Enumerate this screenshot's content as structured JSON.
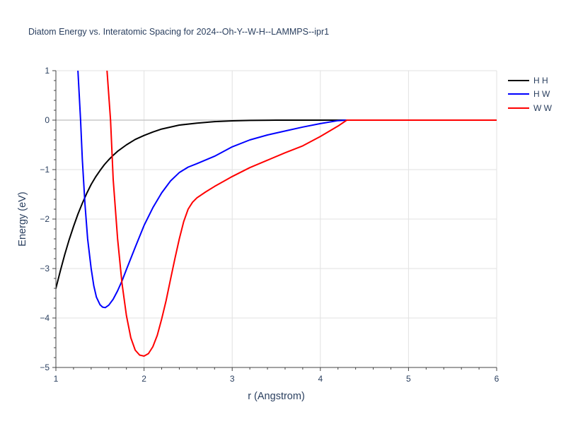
{
  "chart_data": {
    "type": "line",
    "title": "Diatom Energy vs. Interatomic Spacing for 2024--Oh-Y--W-H--LAMMPS--ipr1",
    "xlabel": "r (Angstrom)",
    "ylabel": "Energy (eV)",
    "xlim": [
      1,
      6
    ],
    "ylim": [
      -5,
      1
    ],
    "x_ticks": [
      1,
      2,
      3,
      4,
      5,
      6
    ],
    "y_ticks": [
      1,
      0,
      -1,
      -2,
      -3,
      -4,
      -5
    ],
    "x_tick_labels": [
      "1",
      "2",
      "3",
      "4",
      "5",
      "6"
    ],
    "y_tick_labels": [
      "1",
      "0",
      "−1",
      "−2",
      "−3",
      "−4",
      "−5"
    ],
    "grid": true,
    "legend_position": "top-right",
    "series": [
      {
        "name": "H H",
        "color": "#000000",
        "x": [
          1.0,
          1.05,
          1.1,
          1.15,
          1.2,
          1.25,
          1.3,
          1.35,
          1.4,
          1.45,
          1.5,
          1.55,
          1.6,
          1.65,
          1.7,
          1.8,
          1.9,
          2.0,
          2.1,
          2.2,
          2.4,
          2.6,
          2.8,
          3.0,
          3.2,
          3.5,
          4.0,
          4.3,
          5.0,
          6.0
        ],
        "y": [
          -3.4,
          -3.05,
          -2.72,
          -2.42,
          -2.15,
          -1.9,
          -1.68,
          -1.48,
          -1.3,
          -1.15,
          -1.02,
          -0.9,
          -0.8,
          -0.71,
          -0.63,
          -0.5,
          -0.39,
          -0.31,
          -0.24,
          -0.18,
          -0.1,
          -0.06,
          -0.03,
          -0.015,
          -0.005,
          0.0,
          0.0,
          0.0,
          0.0,
          0.0
        ]
      },
      {
        "name": "H W",
        "color": "#0000ff",
        "x": [
          1.25,
          1.28,
          1.3,
          1.33,
          1.36,
          1.4,
          1.43,
          1.46,
          1.5,
          1.53,
          1.56,
          1.6,
          1.65,
          1.7,
          1.75,
          1.8,
          1.9,
          2.0,
          2.1,
          2.2,
          2.3,
          2.4,
          2.5,
          2.6,
          2.8,
          3.0,
          3.2,
          3.4,
          3.6,
          3.8,
          4.0,
          4.2,
          4.3,
          5.0,
          6.0
        ],
        "y": [
          1.0,
          0.0,
          -0.8,
          -1.7,
          -2.4,
          -3.0,
          -3.35,
          -3.58,
          -3.73,
          -3.78,
          -3.79,
          -3.74,
          -3.62,
          -3.45,
          -3.25,
          -3.02,
          -2.57,
          -2.13,
          -1.77,
          -1.47,
          -1.23,
          -1.06,
          -0.95,
          -0.88,
          -0.73,
          -0.54,
          -0.4,
          -0.3,
          -0.22,
          -0.14,
          -0.07,
          -0.01,
          0.0,
          0.0,
          0.0
        ]
      },
      {
        "name": "W W",
        "color": "#ff0000",
        "x": [
          1.58,
          1.62,
          1.65,
          1.7,
          1.75,
          1.8,
          1.85,
          1.9,
          1.95,
          2.0,
          2.05,
          2.1,
          2.15,
          2.2,
          2.25,
          2.3,
          2.35,
          2.4,
          2.45,
          2.5,
          2.55,
          2.6,
          2.7,
          2.8,
          3.0,
          3.2,
          3.4,
          3.6,
          3.8,
          4.0,
          4.2,
          4.3,
          5.0,
          6.0
        ],
        "y": [
          1.0,
          0.0,
          -1.2,
          -2.4,
          -3.3,
          -3.95,
          -4.4,
          -4.65,
          -4.75,
          -4.77,
          -4.72,
          -4.58,
          -4.35,
          -4.02,
          -3.65,
          -3.22,
          -2.8,
          -2.4,
          -2.05,
          -1.8,
          -1.66,
          -1.57,
          -1.45,
          -1.34,
          -1.14,
          -0.96,
          -0.81,
          -0.66,
          -0.52,
          -0.33,
          -0.12,
          0.0,
          0.0,
          0.0
        ]
      }
    ]
  }
}
